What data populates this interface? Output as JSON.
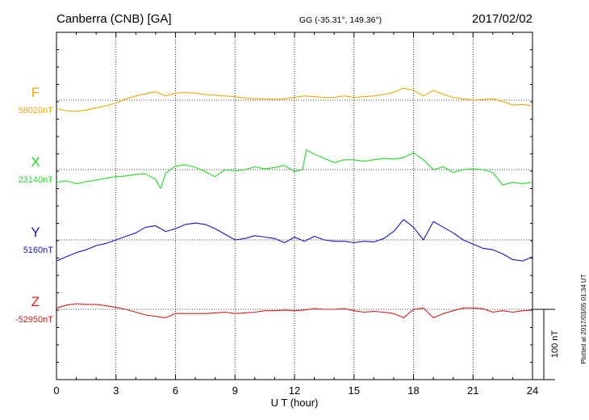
{
  "header": {
    "station": "Canberra (CNB)  [GA]",
    "coords": "GG (-35.31°, 149.36°)",
    "date": "2017/02/02"
  },
  "footer": {
    "plotted": "Plotted at 2017/03/05 01:34 UT"
  },
  "chart_data": {
    "type": "line",
    "xlabel": "U T (hour)",
    "xlim": [
      0,
      24
    ],
    "xticks": [
      "0",
      "3",
      "6",
      "9",
      "12",
      "15",
      "18",
      "21",
      "24"
    ],
    "scale_bar_label": "100 nT",
    "grid": true,
    "series": [
      {
        "name": "F",
        "baseline": "58020nT",
        "color": "#f0a800",
        "x": [
          0,
          0.5,
          1,
          1.5,
          2,
          2.5,
          3,
          3.5,
          4,
          4.5,
          5,
          5.5,
          6,
          6.5,
          7,
          7.5,
          8,
          8.5,
          9,
          9.5,
          10,
          10.5,
          11,
          11.5,
          12,
          12.5,
          13,
          13.5,
          14,
          14.5,
          15,
          15.5,
          16,
          16.5,
          17,
          17.5,
          18,
          18.5,
          19,
          19.5,
          20,
          20.5,
          21,
          21.5,
          22,
          22.5,
          23,
          23.5,
          24
        ],
        "y": [
          -12,
          -15,
          -16,
          -14,
          -11,
          -8,
          -4,
          2,
          6,
          9,
          12,
          6,
          10,
          11,
          10,
          8,
          7,
          6,
          5,
          3,
          2,
          2,
          1,
          2,
          4,
          6,
          5,
          4,
          4,
          6,
          4,
          5,
          6,
          8,
          11,
          17,
          14,
          6,
          14,
          8,
          4,
          2,
          0,
          1,
          2,
          -2,
          -7,
          -6,
          -8
        ]
      },
      {
        "name": "X",
        "baseline": "23140nT",
        "color": "#22dd22",
        "x": [
          0,
          0.5,
          1,
          1.5,
          2,
          2.5,
          3,
          3.5,
          4,
          4.5,
          5,
          5.25,
          5.5,
          6,
          6.5,
          7,
          7.5,
          8,
          8.5,
          9,
          9.5,
          10,
          10.5,
          11,
          11.5,
          12,
          12.4,
          12.6,
          13,
          13.5,
          14,
          14.5,
          15,
          15.5,
          16,
          16.5,
          17,
          17.5,
          18,
          18.5,
          19,
          19.5,
          20,
          20.5,
          21,
          21.5,
          22,
          22.5,
          23,
          23.5,
          24
        ],
        "y": [
          -18,
          -16,
          -20,
          -17,
          -15,
          -12,
          -10,
          -9,
          -7,
          -6,
          -14,
          -27,
          -5,
          5,
          7,
          3,
          -3,
          -10,
          0,
          -2,
          0,
          4,
          1,
          3,
          6,
          -3,
          0,
          28,
          22,
          16,
          10,
          14,
          14,
          12,
          14,
          16,
          15,
          17,
          24,
          14,
          0,
          4,
          -4,
          0,
          1,
          0,
          -4,
          -22,
          -18,
          -20,
          -18
        ]
      },
      {
        "name": "Y",
        "baseline": "5160nT",
        "color": "#1414cc",
        "x": [
          0,
          0.5,
          1,
          1.5,
          2,
          2.5,
          3,
          3.5,
          4,
          4.5,
          5,
          5.5,
          6,
          6.5,
          7,
          7.5,
          8,
          8.5,
          9,
          9.5,
          10,
          10.5,
          11,
          11.5,
          12,
          12.5,
          13,
          13.5,
          14,
          14.5,
          15,
          15.5,
          16,
          16.5,
          17,
          17.5,
          18,
          18.5,
          19,
          19.5,
          20,
          20.5,
          21,
          21.5,
          22,
          22.5,
          23,
          23.5,
          24
        ],
        "y": [
          -30,
          -24,
          -18,
          -14,
          -8,
          -5,
          0,
          5,
          10,
          18,
          20,
          12,
          16,
          22,
          24,
          22,
          16,
          8,
          0,
          2,
          6,
          4,
          2,
          -4,
          4,
          -2,
          5,
          0,
          -2,
          -2,
          -4,
          -2,
          -3,
          2,
          12,
          29,
          18,
          0,
          26,
          18,
          10,
          0,
          -6,
          -12,
          -14,
          -20,
          -28,
          -30,
          -24
        ]
      },
      {
        "name": "Z",
        "baseline": "-52950nT",
        "color": "#dd1a1a",
        "x": [
          0,
          0.5,
          1,
          1.5,
          2,
          2.5,
          3,
          3.5,
          4,
          4.5,
          5,
          5.5,
          6,
          6.5,
          7,
          7.5,
          8,
          8.5,
          9,
          9.5,
          10,
          10.5,
          11,
          11.5,
          12,
          12.5,
          13,
          13.5,
          14,
          14.5,
          15,
          15.5,
          16,
          16.5,
          17,
          17.5,
          18,
          18.5,
          19,
          19.5,
          20,
          20.5,
          21,
          21.5,
          22,
          22.5,
          23,
          23.5,
          24
        ],
        "y": [
          2,
          6,
          8,
          7,
          7,
          5,
          3,
          0,
          -4,
          -8,
          -10,
          -12,
          -6,
          -6,
          -6,
          -6,
          -5,
          -4,
          -6,
          -5,
          -4,
          -2,
          -2,
          -1,
          -2,
          -1,
          1,
          0,
          0,
          1,
          -2,
          -4,
          -3,
          -4,
          -6,
          -12,
          0,
          2,
          -12,
          -6,
          -2,
          2,
          2,
          1,
          -4,
          -2,
          -4,
          -2,
          -1
        ]
      }
    ]
  }
}
